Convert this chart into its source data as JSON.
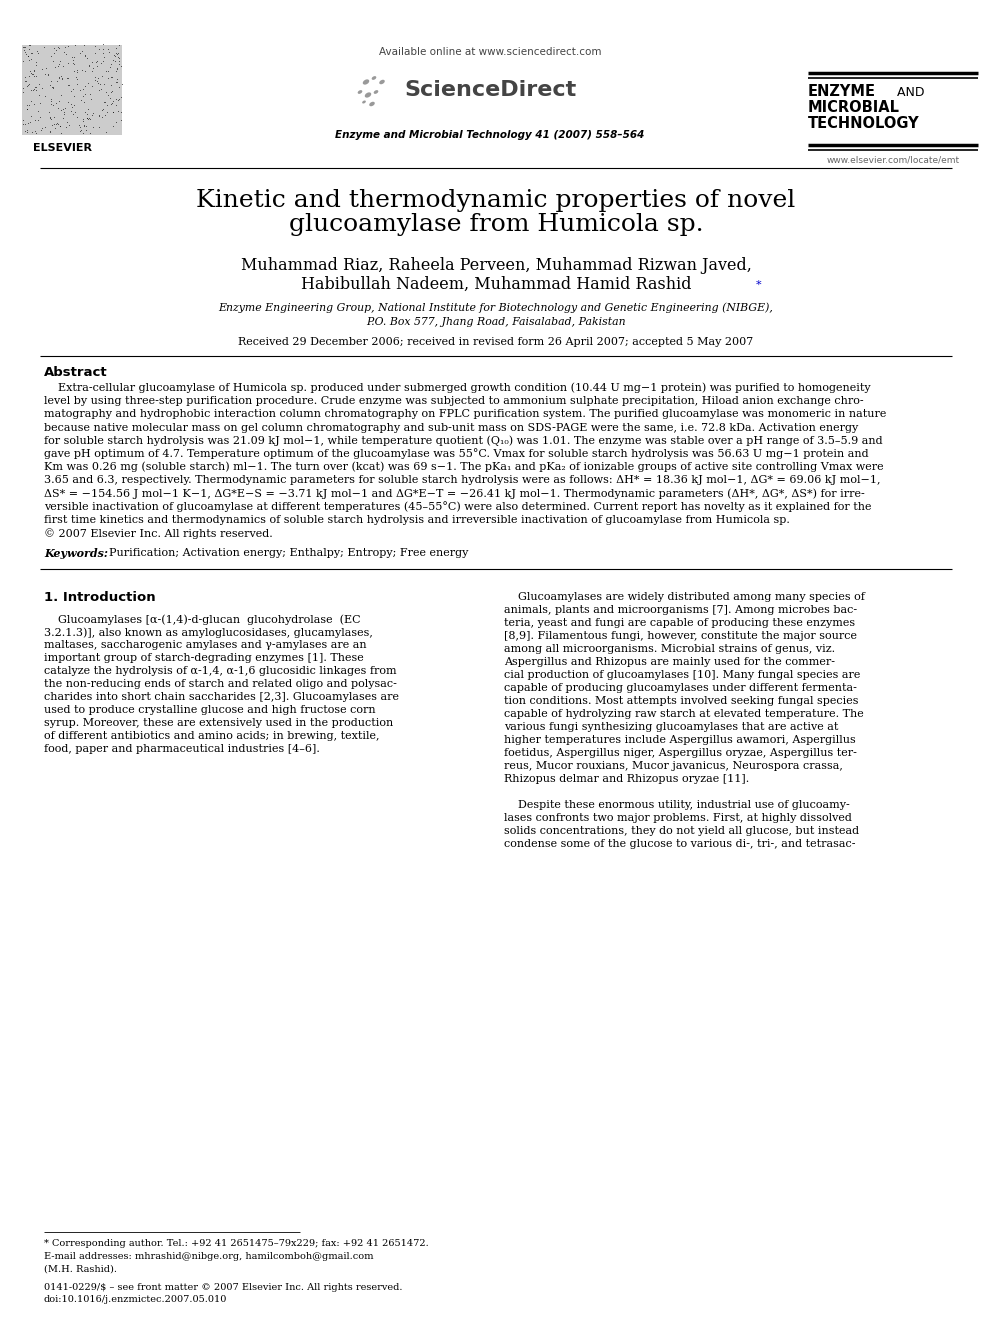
{
  "bg_color": "#ffffff",
  "header_available": "Available online at www.sciencedirect.com",
  "header_journal": "Enzyme and Microbial Technology 41 (2007) 558–564",
  "header_website": "www.elsevier.com/locate/emt",
  "journal_bold1": "ENZYME",
  "journal_normal1": " AND",
  "journal_bold2": "MICROBIAL",
  "journal_bold3": "TECHNOLOGY",
  "sciencedirect_text": "ScienceDirect",
  "elsevier_text": "ELSEVIER",
  "paper_title_line1": "Kinetic and thermodynamic properties of novel",
  "paper_title_line2_pre": "glucoamylase from ",
  "paper_title_italic": "Humicola",
  "paper_title_end": " sp.",
  "authors_line1": "Muhammad Riaz, Raheela Perveen, Muhammad Rizwan Javed,",
  "authors_line2": "Habibullah Nadeem, Muhammad Hamid Rashid",
  "affiliation_line1": "Enzyme Engineering Group, National Institute for Biotechnology and Genetic Engineering (NIBGE),",
  "affiliation_line2": "P.O. Box 577, Jhang Road, Faisalabad, Pakistan",
  "received": "Received 29 December 2006; received in revised form 26 April 2007; accepted 5 May 2007",
  "abstract_title": "Abstract",
  "keywords_label": "Keywords:",
  "keywords_text": "  Purification; Activation energy; Enthalpy; Entropy; Free energy",
  "section1_title": "1. Introduction",
  "footnote_line1": "* Corresponding author. Tel.: +92 41 2651475–79x229; fax: +92 41 2651472.",
  "footnote_line2": "E-mail addresses: mhrashid@nibge.org, hamilcomboh@gmail.com",
  "footnote_line3": "(M.H. Rashid).",
  "copyright_line1": "0141-0229/$ – see front matter © 2007 Elsevier Inc. All rights reserved.",
  "copyright_line2": "doi:10.1016/j.enzmictec.2007.05.010",
  "abstract_lines": [
    "    Extra-cellular glucoamylase of Humicola sp. produced under submerged growth condition (10.44 U mg−1 protein) was purified to homogeneity",
    "level by using three-step purification procedure. Crude enzyme was subjected to ammonium sulphate precipitation, Hiload anion exchange chro-",
    "matography and hydrophobic interaction column chromatography on FPLC purification system. The purified glucoamylase was monomeric in nature",
    "because native molecular mass on gel column chromatography and sub-unit mass on SDS-PAGE were the same, i.e. 72.8 kDa. Activation energy",
    "for soluble starch hydrolysis was 21.09 kJ mol−1, while temperature quotient (Q₁₀) was 1.01. The enzyme was stable over a pH range of 3.5–5.9 and",
    "gave pH optimum of 4.7. Temperature optimum of the glucoamylase was 55°C. Vmax for soluble starch hydrolysis was 56.63 U mg−1 protein and",
    "Km was 0.26 mg (soluble starch) ml−1. The turn over (kcat) was 69 s−1. The pKa₁ and pKa₂ of ionizable groups of active site controlling Vmax were",
    "3.65 and 6.3, respectively. Thermodynamic parameters for soluble starch hydrolysis were as follows: ΔH* = 18.36 kJ mol−1, ΔG* = 69.06 kJ mol−1,",
    "ΔS* = −154.56 J mol−1 K−1, ΔG*E−S = −3.71 kJ mol−1 and ΔG*E−T = −26.41 kJ mol−1. Thermodynamic parameters (ΔH*, ΔG*, ΔS*) for irre-",
    "versible inactivation of glucoamylase at different temperatures (45–55°C) were also determined. Current report has novelty as it explained for the",
    "first time kinetics and thermodynamics of soluble starch hydrolysis and irreversible inactivation of glucoamylase from Humicola sp.",
    "© 2007 Elsevier Inc. All rights reserved."
  ],
  "intro1_lines": [
    "    Glucoamylases [α-(1,4)-d-glucan  glucohydrolase  (EC",
    "3.2.1.3)], also known as amyloglucosidases, glucamylases,",
    "maltases, saccharogenic amylases and γ-amylases are an",
    "important group of starch-degrading enzymes [1]. These",
    "catalyze the hydrolysis of α-1,4, α-1,6 glucosidic linkages from",
    "the non-reducing ends of starch and related oligo and polysac-",
    "charides into short chain saccharides [2,3]. Glucoamylases are",
    "used to produce crystalline glucose and high fructose corn",
    "syrup. Moreover, these are extensively used in the production",
    "of different antibiotics and amino acids; in brewing, textile,",
    "food, paper and pharmaceutical industries [4–6]."
  ],
  "intro2_lines": [
    "    Glucoamylases are widely distributed among many species of",
    "animals, plants and microorganisms [7]. Among microbes bac-",
    "teria, yeast and fungi are capable of producing these enzymes",
    "[8,9]. Filamentous fungi, however, constitute the major source",
    "among all microorganisms. Microbial strains of genus, viz.",
    "Aspergillus and Rhizopus are mainly used for the commer-",
    "cial production of glucoamylases [10]. Many fungal species are",
    "capable of producing glucoamylases under different fermenta-",
    "tion conditions. Most attempts involved seeking fungal species",
    "capable of hydrolyzing raw starch at elevated temperature. The",
    "various fungi synthesizing glucoamylases that are active at",
    "higher temperatures include Aspergillus awamori, Aspergillus",
    "foetidus, Aspergillus niger, Aspergillus oryzae, Aspergillus ter-",
    "reus, Mucor rouxians, Mucor javanicus, Neurospora crassa,",
    "Rhizopus delmar and Rhizopus oryzae [11].",
    "",
    "    Despite these enormous utility, industrial use of glucoamy-",
    "lases confronts two major problems. First, at highly dissolved",
    "solids concentrations, they do not yield all glucose, but instead",
    "condense some of the glucose to various di-, tri-, and tetrasac-"
  ]
}
